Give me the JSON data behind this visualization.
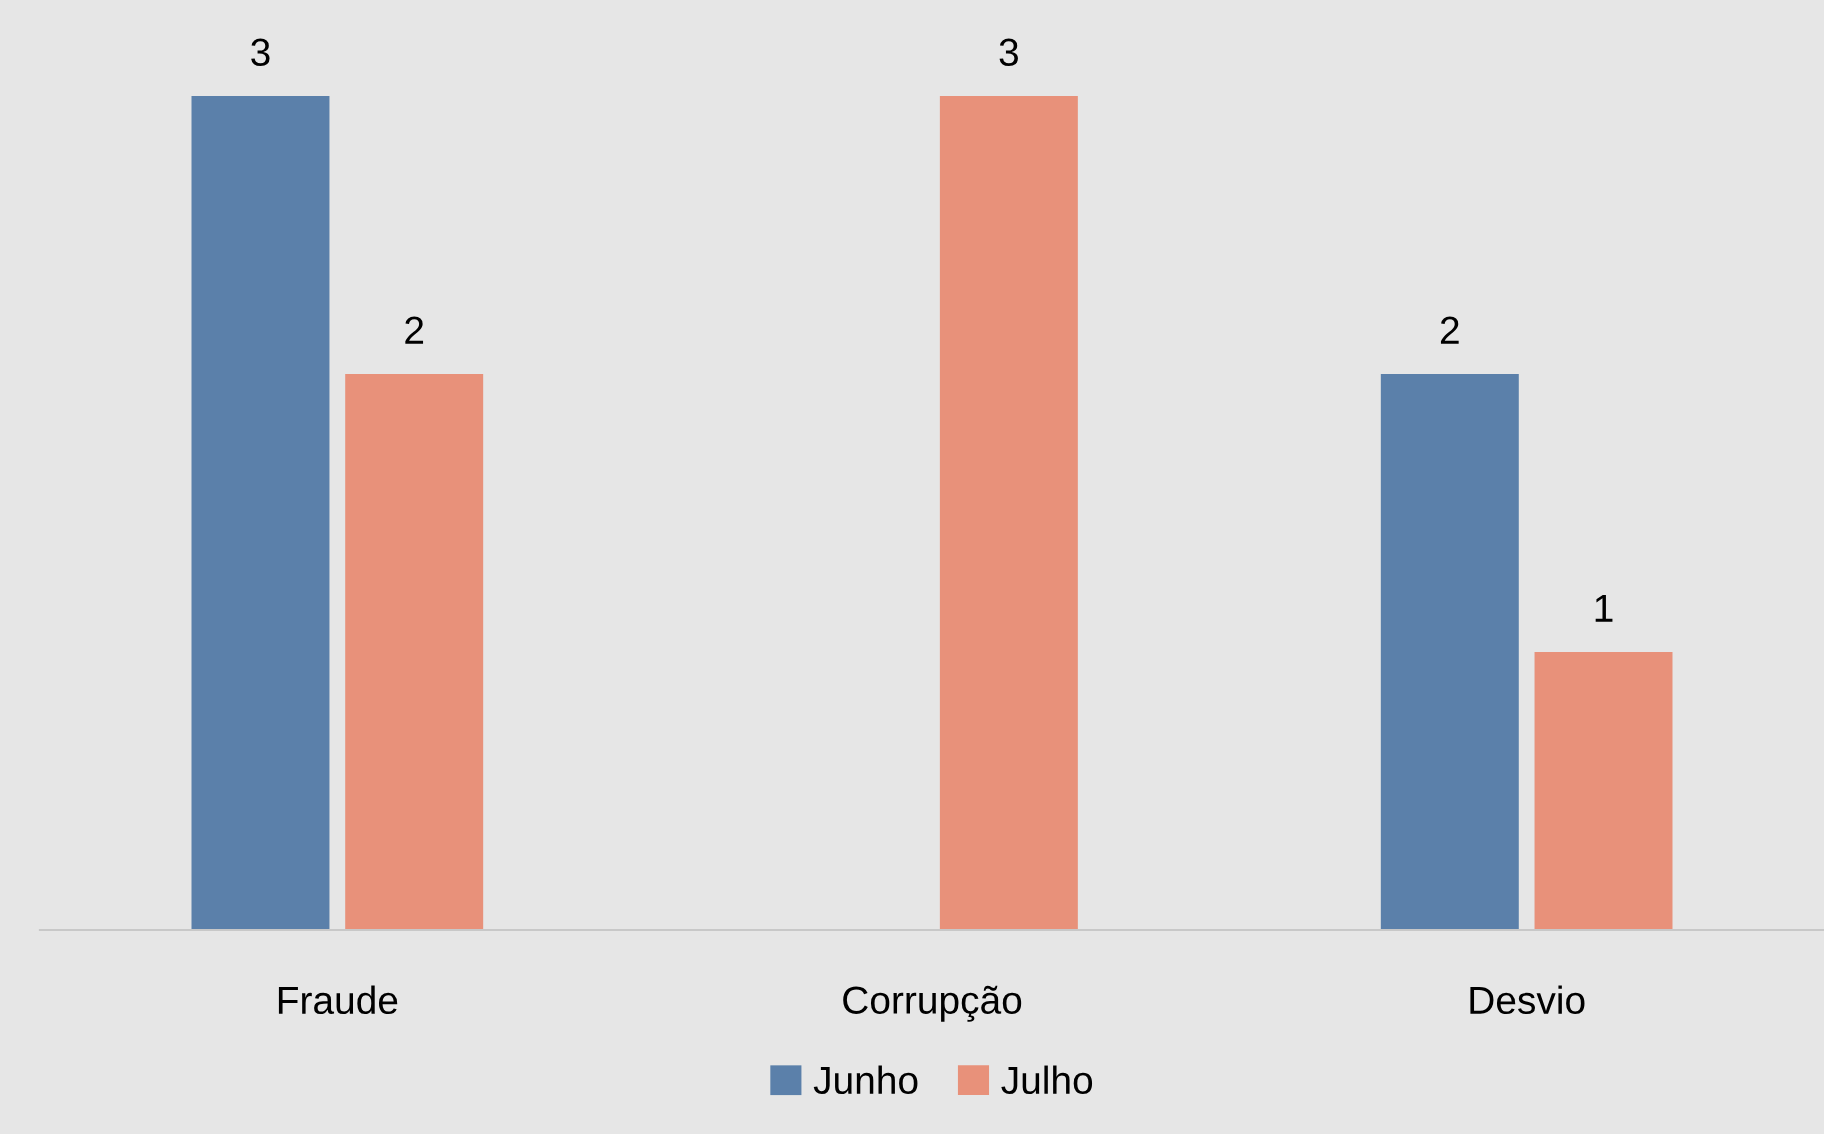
{
  "chart_data": {
    "type": "bar",
    "categories": [
      "Fraude",
      "Corrupção",
      "Desvio"
    ],
    "series": [
      {
        "name": "Junho",
        "color": "#5b80aa",
        "values": [
          3,
          null,
          2
        ]
      },
      {
        "name": "Julho",
        "color": "#e8917a",
        "values": [
          2,
          3,
          1
        ]
      }
    ],
    "data_labels": true,
    "legend": "bottom",
    "grid": false
  }
}
